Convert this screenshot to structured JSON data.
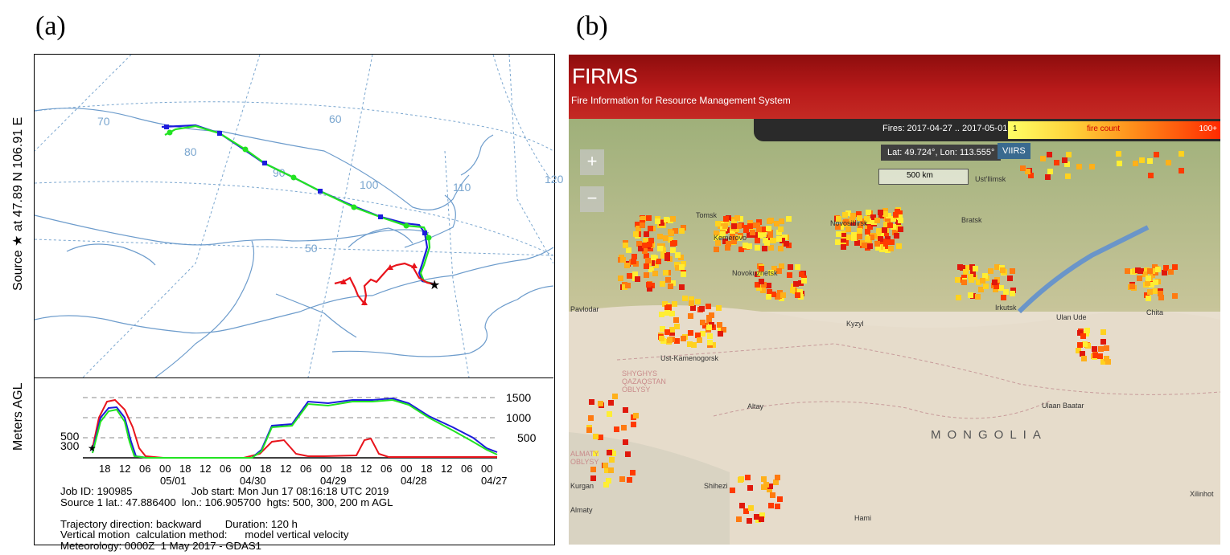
{
  "panels": {
    "a_label": "(a)",
    "b_label": "(b)"
  },
  "hysplit": {
    "side_label_top": "Source ★  at  47.89 N  106.91 E",
    "side_label_bottom": "Meters AGL",
    "lat_labels": [
      "70",
      "60",
      "50"
    ],
    "lon_labels": [
      "80",
      "90",
      "100",
      "110",
      "120"
    ],
    "height_levels": [
      "1500",
      "1000",
      "500"
    ],
    "left_levels": [
      "500",
      "300"
    ],
    "time_ticks": [
      "18",
      "12",
      "06",
      "00",
      "18",
      "12",
      "06",
      "00",
      "18",
      "12",
      "06",
      "00",
      "18",
      "12",
      "06",
      "00",
      "18",
      "12",
      "06",
      "00"
    ],
    "date_labels": [
      "05/01",
      "04/30",
      "04/29",
      "04/28",
      "04/27"
    ],
    "info_lines": [
      "Job ID: 190985                    Job start: Mon Jun 17 08:16:18 UTC 2019",
      "Source 1 lat.: 47.886400  lon.: 106.905700  hgts: 500, 300, 200 m AGL",
      "",
      "Trajectory direction: backward        Duration: 120 h",
      "Vertical motion  calculation method:      model vertical velocity",
      "Meteorology: 0000Z  1 May 2017 - GDAS1"
    ],
    "colors": {
      "red": "#e8141c",
      "blue": "#1c1cdc",
      "green": "#22e322",
      "grid": "#7aa6cf",
      "coast": "#6d9ccc"
    }
  },
  "firms": {
    "title": "FIRMS",
    "subtitle": "Fire Information for Resource Management System",
    "legend_label": "Fires: 2017-04-27 .. 2017-05-01",
    "legend_min": "1",
    "legend_mid": "fire count",
    "legend_max": "100+",
    "latlon": "Lat: 49.724°, Lon: 113.555°",
    "sensor": "VIIRS",
    "scale": "500 km",
    "zoom_in": "+",
    "zoom_out": "−",
    "cities": [
      "Ust'Ilimsk",
      "Bratsk",
      "Tomsk",
      "Kemerovo",
      "Novosibirsk",
      "Novokuznetsk",
      "Pavlodar",
      "Kyzyl",
      "Irkutsk",
      "Ulan Ude",
      "Chita",
      "Ust-Kamenogorsk",
      "Altay",
      "Ulaan Baatar",
      "Kurgan",
      "Almaty",
      "Shihezi",
      "Hami",
      "Xilinhot"
    ],
    "regions": [
      "SHYGHYS QAZAQSTAN OBLYSY",
      "ALMATY OBLYSY"
    ],
    "country": "MONGOLIA"
  }
}
